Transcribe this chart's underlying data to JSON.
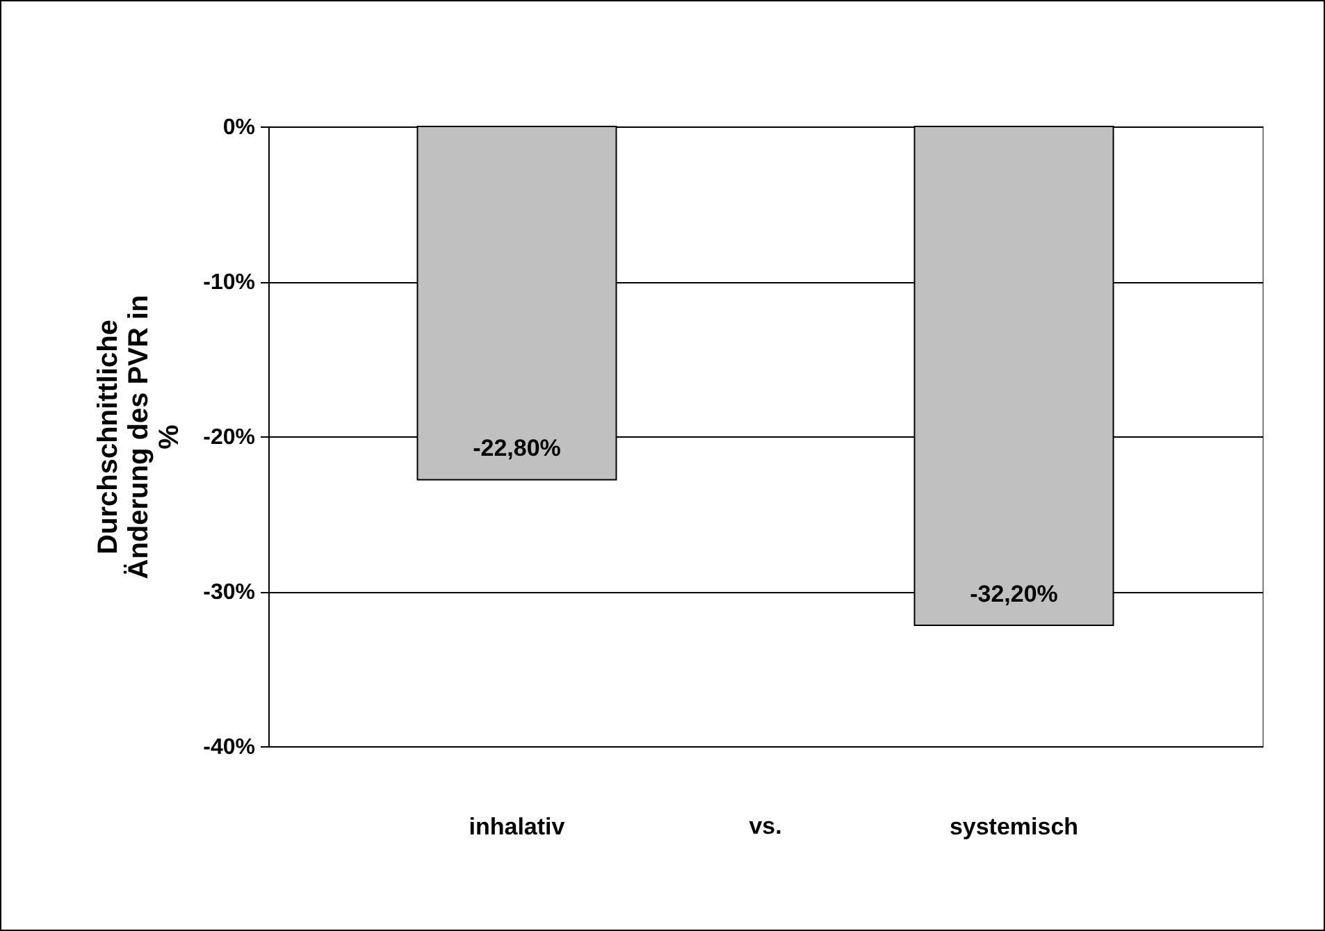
{
  "chart_data": {
    "type": "bar",
    "ylabel": "Durchschnittliche Änderung des PVR in %",
    "categories": [
      "inhalativ",
      "systemisch"
    ],
    "values": [
      -22.8,
      -32.2
    ],
    "value_labels": [
      "-22,80%",
      "-32,20%"
    ],
    "color": "#c0c0c0",
    "ylim": [
      -40,
      0
    ],
    "yticks": [
      {
        "value": -40,
        "label": "-40%"
      },
      {
        "value": -30,
        "label": "-30%"
      },
      {
        "value": -20,
        "label": "-20%"
      },
      {
        "value": -10,
        "label": "-10%"
      },
      {
        "value": 0,
        "label": "0%"
      }
    ],
    "grid": "y",
    "annotations": [
      "vs."
    ]
  }
}
